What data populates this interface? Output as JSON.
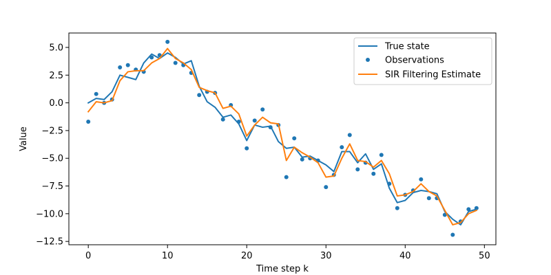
{
  "chart_data": {
    "type": "line",
    "title": "",
    "xlabel": "Time step k",
    "ylabel": "Value",
    "xlim": [
      -2.45,
      51.45
    ],
    "ylim": [
      -12.8,
      6.3
    ],
    "xticks": [
      0,
      10,
      20,
      30,
      40,
      50
    ],
    "yticks": [
      5.0,
      2.5,
      0.0,
      -2.5,
      -5.0,
      -7.5,
      -10.0,
      -12.5
    ],
    "xtick_labels": [
      "0",
      "10",
      "20",
      "30",
      "40",
      "50"
    ],
    "ytick_labels": [
      "5.0",
      "2.5",
      "0.0",
      "−2.5",
      "−5.0",
      "−7.5",
      "−10.0",
      "−12.5"
    ],
    "grid": false,
    "legend_position": "top-right",
    "x": [
      0,
      1,
      2,
      3,
      4,
      5,
      6,
      7,
      8,
      9,
      10,
      11,
      12,
      13,
      14,
      15,
      16,
      17,
      18,
      19,
      20,
      21,
      22,
      23,
      24,
      25,
      26,
      27,
      28,
      29,
      30,
      31,
      32,
      33,
      34,
      35,
      36,
      37,
      38,
      39,
      40,
      41,
      42,
      43,
      44,
      45,
      46,
      47,
      48,
      49
    ],
    "series": [
      {
        "name": "True state",
        "kind": "line",
        "color": "#1f77b4",
        "values": [
          0.0,
          0.4,
          0.3,
          1.0,
          2.5,
          2.3,
          2.1,
          3.6,
          4.4,
          4.0,
          4.5,
          4.1,
          3.5,
          3.8,
          1.5,
          0.1,
          -0.4,
          -1.3,
          -1.1,
          -1.9,
          -3.4,
          -2.0,
          -2.2,
          -2.1,
          -3.5,
          -4.1,
          -4.0,
          -4.9,
          -4.8,
          -5.2,
          -5.6,
          -6.2,
          -4.4,
          -4.4,
          -5.4,
          -4.6,
          -6.0,
          -5.5,
          -7.7,
          -9.0,
          -8.8,
          -8.1,
          -7.9,
          -8.0,
          -8.2,
          -9.8,
          -10.5,
          -11.0,
          -9.8,
          -9.6
        ]
      },
      {
        "name": "Observations",
        "kind": "scatter",
        "color": "#1f77b4",
        "values": [
          -1.7,
          0.8,
          0.0,
          0.3,
          3.2,
          3.4,
          3.0,
          2.8,
          4.1,
          4.3,
          5.5,
          3.6,
          3.4,
          2.7,
          0.7,
          1.0,
          0.9,
          -1.5,
          -0.2,
          -1.7,
          -4.1,
          -1.6,
          -0.6,
          -2.2,
          -2.0,
          -6.7,
          -3.2,
          -5.1,
          -5.0,
          -5.2,
          -7.6,
          -6.5,
          -4.0,
          -2.9,
          -6.0,
          -5.4,
          -6.4,
          -4.7,
          -7.3,
          -9.5,
          -8.3,
          -7.9,
          -6.9,
          -8.6,
          -8.6,
          -10.1,
          -11.9,
          -10.7,
          -9.6,
          -9.5
        ]
      },
      {
        "name": "SIR Filtering Estimate",
        "kind": "line",
        "color": "#ff7f0e",
        "values": [
          -0.8,
          0.1,
          0.0,
          0.2,
          2.0,
          2.8,
          2.9,
          2.9,
          3.6,
          4.0,
          4.9,
          4.0,
          3.6,
          3.0,
          1.4,
          1.1,
          0.9,
          -0.5,
          -0.3,
          -1.0,
          -3.0,
          -2.0,
          -1.3,
          -1.8,
          -1.9,
          -5.2,
          -4.0,
          -4.5,
          -4.9,
          -5.4,
          -6.7,
          -6.6,
          -5.0,
          -3.7,
          -5.2,
          -5.3,
          -5.8,
          -5.2,
          -6.4,
          -8.4,
          -8.3,
          -8.0,
          -7.3,
          -8.0,
          -8.4,
          -9.7,
          -11.0,
          -10.8,
          -10.0,
          -9.7
        ]
      }
    ]
  }
}
